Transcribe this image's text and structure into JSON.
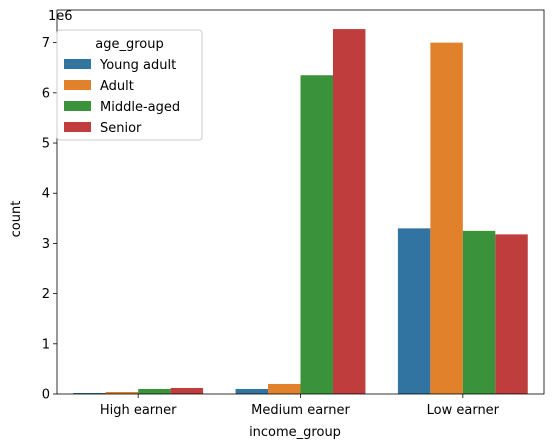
{
  "chart_data": {
    "type": "bar",
    "xlabel": "income_group",
    "ylabel": "count",
    "offset_text": "1e6",
    "categories": [
      "High earner",
      "Medium earner",
      "Low earner"
    ],
    "ylim": [
      0,
      7.65
    ],
    "y_unit_multiplier": 1000000,
    "y_ticks": [
      0,
      1,
      2,
      3,
      4,
      5,
      6,
      7
    ],
    "y_tick_labels": [
      "0",
      "1",
      "2",
      "3",
      "4",
      "5",
      "6",
      "7"
    ],
    "grid": false,
    "legend": {
      "title": "age_group",
      "placement": "top-left"
    },
    "series": [
      {
        "name": "Young adult",
        "color": "#3274a1",
        "values": [
          0.02,
          0.1,
          3.3
        ]
      },
      {
        "name": "Adult",
        "color": "#e1812c",
        "values": [
          0.04,
          0.2,
          7.0
        ]
      },
      {
        "name": "Middle-aged",
        "color": "#3a923a",
        "values": [
          0.1,
          6.35,
          3.25
        ]
      },
      {
        "name": "Senior",
        "color": "#c03d3e",
        "values": [
          0.12,
          7.27,
          3.18
        ]
      }
    ]
  }
}
